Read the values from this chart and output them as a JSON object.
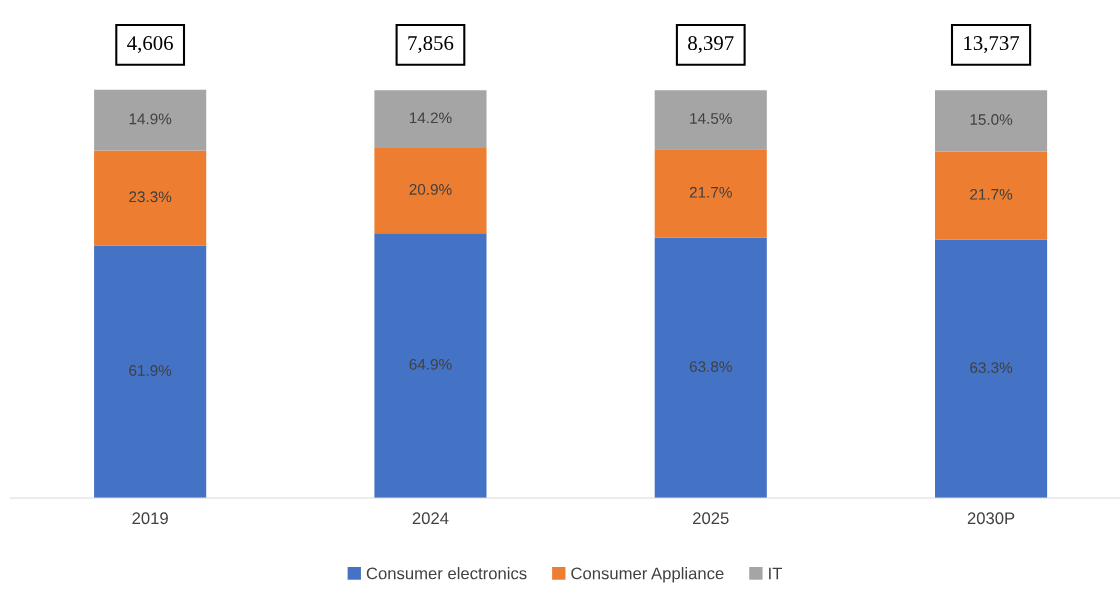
{
  "chart_data": {
    "type": "bar",
    "stacked": true,
    "categories": [
      "2019",
      "2024",
      "2025",
      "2030P"
    ],
    "series": [
      {
        "name": "Consumer electronics",
        "color": "#4472c4",
        "values": [
          61.9,
          64.9,
          63.8,
          63.3
        ],
        "value_labels": [
          "61.9%",
          "64.9%",
          "63.8%",
          "63.3%"
        ]
      },
      {
        "name": "Consumer Appliance",
        "color": "#ed7d31",
        "values": [
          23.3,
          20.9,
          21.7,
          21.7
        ],
        "value_labels": [
          "23.3%",
          "20.9%",
          "21.7%",
          "21.7%"
        ]
      },
      {
        "name": "IT",
        "color": "#a5a5a5",
        "values": [
          14.9,
          14.2,
          14.5,
          15.0
        ],
        "value_labels": [
          "14.9%",
          "14.2%",
          "14.5%",
          "15.0%"
        ]
      }
    ],
    "annotations": [
      "4,606",
      "7,856",
      "8,397",
      "13,737"
    ],
    "legend": "bottom",
    "grid": false
  }
}
